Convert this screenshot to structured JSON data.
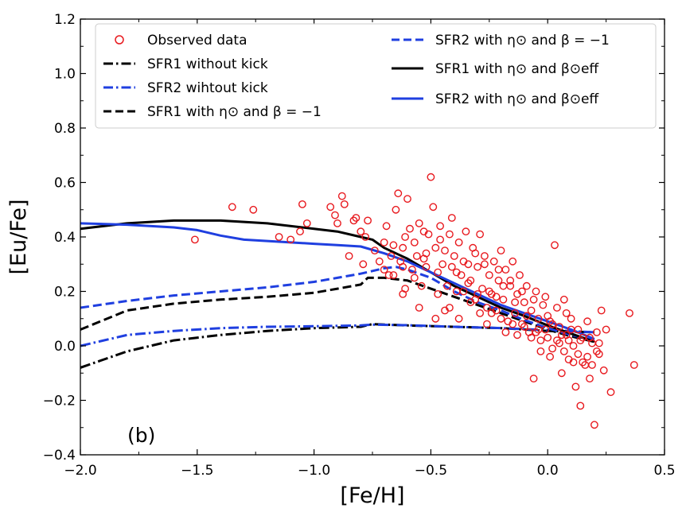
{
  "chart_data": {
    "type": "line",
    "panel_label": "(b)",
    "xlabel": "[Fe/H]",
    "ylabel": "[Eu/Fe]",
    "xlim": [
      -2.0,
      0.5
    ],
    "ylim": [
      -0.4,
      1.2
    ],
    "xticks": [
      -2.0,
      -1.5,
      -1.0,
      -0.5,
      0.0,
      0.5
    ],
    "xtick_labels": [
      "−2.0",
      "−1.5",
      "−1.0",
      "−0.5",
      "0.0",
      "0.5"
    ],
    "yticks": [
      -0.4,
      -0.2,
      0.0,
      0.2,
      0.4,
      0.6,
      0.8,
      1.0,
      1.2
    ],
    "ytick_labels": [
      "−0.4",
      "−0.2",
      "0.0",
      "0.2",
      "0.4",
      "0.6",
      "0.8",
      "1.0",
      "1.2"
    ],
    "grid": false,
    "legend_placement": "top",
    "legend": {
      "observed": "Observed data",
      "sfr1_nokick": "SFR1 without kick",
      "sfr2_nokick": "SFR2 wihtout kick",
      "sfr1_beta_m1": "SFR1 with η⊙ and β = −1",
      "sfr2_beta_m1": "SFR2 with η⊙ and β = −1",
      "sfr1_beta_eff": "SFR1 with η⊙ and β⊙eff",
      "sfr2_beta_eff": "SFR2 with η⊙ and β⊙eff"
    },
    "series": [
      {
        "key": "sfr1_nokick",
        "color": "#000000",
        "style": "dashdot",
        "points": [
          [
            -2.0,
            -0.08
          ],
          [
            -1.8,
            -0.02
          ],
          [
            -1.6,
            0.02
          ],
          [
            -1.4,
            0.04
          ],
          [
            -1.2,
            0.055
          ],
          [
            -1.0,
            0.065
          ],
          [
            -0.8,
            0.07
          ],
          [
            -0.75,
            0.08
          ],
          [
            -0.6,
            0.075
          ],
          [
            -0.4,
            0.07
          ],
          [
            -0.2,
            0.065
          ],
          [
            0.0,
            0.055
          ],
          [
            0.2,
            0.05
          ]
        ]
      },
      {
        "key": "sfr2_nokick",
        "color": "#1f3fe0",
        "style": "dashdot",
        "points": [
          [
            -2.0,
            0.0
          ],
          [
            -1.8,
            0.04
          ],
          [
            -1.6,
            0.055
          ],
          [
            -1.4,
            0.065
          ],
          [
            -1.2,
            0.07
          ],
          [
            -1.0,
            0.072
          ],
          [
            -0.8,
            0.075
          ],
          [
            -0.75,
            0.078
          ],
          [
            -0.6,
            0.076
          ],
          [
            -0.4,
            0.07
          ],
          [
            -0.2,
            0.065
          ],
          [
            0.0,
            0.058
          ],
          [
            0.2,
            0.05
          ]
        ]
      },
      {
        "key": "sfr1_beta_m1",
        "color": "#000000",
        "style": "dashed",
        "points": [
          [
            -2.0,
            0.06
          ],
          [
            -1.8,
            0.13
          ],
          [
            -1.6,
            0.155
          ],
          [
            -1.4,
            0.17
          ],
          [
            -1.2,
            0.18
          ],
          [
            -1.0,
            0.195
          ],
          [
            -0.9,
            0.21
          ],
          [
            -0.8,
            0.225
          ],
          [
            -0.77,
            0.25
          ],
          [
            -0.7,
            0.25
          ],
          [
            -0.6,
            0.24
          ],
          [
            -0.5,
            0.21
          ],
          [
            -0.4,
            0.18
          ],
          [
            -0.3,
            0.15
          ],
          [
            -0.2,
            0.12
          ],
          [
            -0.1,
            0.09
          ],
          [
            0.0,
            0.06
          ],
          [
            0.1,
            0.035
          ],
          [
            0.2,
            0.015
          ]
        ]
      },
      {
        "key": "sfr2_beta_m1",
        "color": "#1f3fe0",
        "style": "dashed",
        "points": [
          [
            -2.0,
            0.14
          ],
          [
            -1.8,
            0.165
          ],
          [
            -1.6,
            0.185
          ],
          [
            -1.4,
            0.2
          ],
          [
            -1.2,
            0.215
          ],
          [
            -1.0,
            0.235
          ],
          [
            -0.9,
            0.25
          ],
          [
            -0.8,
            0.265
          ],
          [
            -0.7,
            0.285
          ],
          [
            -0.65,
            0.29
          ],
          [
            -0.6,
            0.28
          ],
          [
            -0.5,
            0.25
          ],
          [
            -0.4,
            0.2
          ],
          [
            -0.3,
            0.16
          ],
          [
            -0.2,
            0.13
          ],
          [
            -0.1,
            0.095
          ],
          [
            0.0,
            0.065
          ],
          [
            0.1,
            0.04
          ],
          [
            0.2,
            0.02
          ]
        ]
      },
      {
        "key": "sfr1_beta_eff",
        "color": "#000000",
        "style": "solid",
        "points": [
          [
            -2.0,
            0.43
          ],
          [
            -1.8,
            0.45
          ],
          [
            -1.6,
            0.46
          ],
          [
            -1.4,
            0.46
          ],
          [
            -1.2,
            0.45
          ],
          [
            -1.0,
            0.43
          ],
          [
            -0.9,
            0.42
          ],
          [
            -0.8,
            0.4
          ],
          [
            -0.75,
            0.39
          ],
          [
            -0.7,
            0.36
          ],
          [
            -0.6,
            0.32
          ],
          [
            -0.5,
            0.27
          ],
          [
            -0.4,
            0.22
          ],
          [
            -0.3,
            0.18
          ],
          [
            -0.2,
            0.14
          ],
          [
            -0.1,
            0.11
          ],
          [
            0.0,
            0.075
          ],
          [
            0.1,
            0.045
          ],
          [
            0.2,
            0.015
          ]
        ]
      },
      {
        "key": "sfr2_beta_eff",
        "color": "#1f3fe0",
        "style": "solid",
        "points": [
          [
            -2.0,
            0.45
          ],
          [
            -1.8,
            0.445
          ],
          [
            -1.6,
            0.435
          ],
          [
            -1.5,
            0.425
          ],
          [
            -1.4,
            0.405
          ],
          [
            -1.3,
            0.39
          ],
          [
            -1.2,
            0.385
          ],
          [
            -1.0,
            0.375
          ],
          [
            -0.9,
            0.37
          ],
          [
            -0.8,
            0.365
          ],
          [
            -0.7,
            0.34
          ],
          [
            -0.6,
            0.31
          ],
          [
            -0.5,
            0.27
          ],
          [
            -0.4,
            0.23
          ],
          [
            -0.3,
            0.19
          ],
          [
            -0.2,
            0.15
          ],
          [
            -0.1,
            0.12
          ],
          [
            0.0,
            0.09
          ],
          [
            0.1,
            0.06
          ],
          [
            0.2,
            0.025
          ]
        ]
      }
    ],
    "scatter": {
      "key": "observed",
      "color": "#e8191e",
      "points": [
        [
          -1.51,
          0.39
        ],
        [
          -1.35,
          0.51
        ],
        [
          -1.26,
          0.5
        ],
        [
          -1.15,
          0.4
        ],
        [
          -1.1,
          0.39
        ],
        [
          -1.06,
          0.42
        ],
        [
          -1.05,
          0.52
        ],
        [
          -1.03,
          0.45
        ],
        [
          -0.93,
          0.51
        ],
        [
          -0.91,
          0.48
        ],
        [
          -0.9,
          0.45
        ],
        [
          -0.88,
          0.55
        ],
        [
          -0.87,
          0.52
        ],
        [
          -0.85,
          0.33
        ],
        [
          -0.83,
          0.46
        ],
        [
          -0.82,
          0.47
        ],
        [
          -0.8,
          0.42
        ],
        [
          -0.79,
          0.3
        ],
        [
          -0.78,
          0.4
        ],
        [
          -0.77,
          0.46
        ],
        [
          -0.74,
          0.35
        ],
        [
          -0.72,
          0.31
        ],
        [
          -0.7,
          0.38
        ],
        [
          -0.69,
          0.44
        ],
        [
          -0.68,
          0.26
        ],
        [
          -0.67,
          0.33
        ],
        [
          -0.66,
          0.37
        ],
        [
          -0.65,
          0.5
        ],
        [
          -0.64,
          0.56
        ],
        [
          -0.63,
          0.31
        ],
        [
          -0.62,
          0.36
        ],
        [
          -0.61,
          0.4
        ],
        [
          -0.6,
          0.54
        ],
        [
          -0.59,
          0.43
        ],
        [
          -0.58,
          0.28
        ],
        [
          -0.57,
          0.38
        ],
        [
          -0.56,
          0.33
        ],
        [
          -0.55,
          0.45
        ],
        [
          -0.54,
          0.22
        ],
        [
          -0.53,
          0.32
        ],
        [
          -0.52,
          0.34
        ],
        [
          -0.51,
          0.41
        ],
        [
          -0.5,
          0.62
        ],
        [
          -0.49,
          0.51
        ],
        [
          -0.48,
          0.36
        ],
        [
          -0.47,
          0.27
        ],
        [
          -0.46,
          0.44
        ],
        [
          -0.45,
          0.3
        ],
        [
          -0.44,
          0.35
        ],
        [
          -0.43,
          0.22
        ],
        [
          -0.42,
          0.41
        ],
        [
          -0.41,
          0.47
        ],
        [
          -0.4,
          0.33
        ],
        [
          -0.39,
          0.27
        ],
        [
          -0.38,
          0.38
        ],
        [
          -0.37,
          0.26
        ],
        [
          -0.36,
          0.2
        ],
        [
          -0.35,
          0.42
        ],
        [
          -0.34,
          0.3
        ],
        [
          -0.33,
          0.24
        ],
        [
          -0.32,
          0.36
        ],
        [
          -0.31,
          0.17
        ],
        [
          -0.3,
          0.29
        ],
        [
          -0.29,
          0.41
        ],
        [
          -0.28,
          0.21
        ],
        [
          -0.27,
          0.33
        ],
        [
          -0.26,
          0.14
        ],
        [
          -0.25,
          0.26
        ],
        [
          -0.24,
          0.19
        ],
        [
          -0.23,
          0.31
        ],
        [
          -0.22,
          0.13
        ],
        [
          -0.21,
          0.24
        ],
        [
          -0.2,
          0.35
        ],
        [
          -0.19,
          0.17
        ],
        [
          -0.18,
          0.28
        ],
        [
          -0.17,
          0.09
        ],
        [
          -0.16,
          0.22
        ],
        [
          -0.15,
          0.31
        ],
        [
          -0.14,
          0.12
        ],
        [
          -0.13,
          0.19
        ],
        [
          -0.12,
          0.26
        ],
        [
          -0.11,
          0.08
        ],
        [
          -0.1,
          0.16
        ],
        [
          -0.09,
          0.22
        ],
        [
          -0.08,
          0.05
        ],
        [
          -0.07,
          0.13
        ],
        [
          -0.06,
          -0.12
        ],
        [
          -0.05,
          0.2
        ],
        [
          -0.04,
          0.1
        ],
        [
          -0.03,
          0.02
        ],
        [
          -0.02,
          0.15
        ],
        [
          -0.01,
          0.06
        ],
        [
          0.0,
          0.11
        ],
        [
          0.01,
          -0.04
        ],
        [
          0.02,
          0.08
        ],
        [
          0.03,
          0.37
        ],
        [
          0.04,
          0.02
        ],
        [
          0.05,
          0.07
        ],
        [
          0.06,
          -0.1
        ],
        [
          0.07,
          0.17
        ],
        [
          0.08,
          0.04
        ],
        [
          0.09,
          -0.05
        ],
        [
          0.1,
          0.1
        ],
        [
          0.11,
          0.0
        ],
        [
          0.12,
          -0.15
        ],
        [
          0.13,
          0.06
        ],
        [
          0.14,
          -0.22
        ],
        [
          0.15,
          0.03
        ],
        [
          0.16,
          -0.07
        ],
        [
          0.17,
          0.09
        ],
        [
          0.18,
          -0.12
        ],
        [
          0.19,
          0.01
        ],
        [
          0.2,
          -0.29
        ],
        [
          0.21,
          0.05
        ],
        [
          0.22,
          -0.03
        ],
        [
          0.23,
          0.13
        ],
        [
          0.24,
          -0.09
        ],
        [
          0.25,
          0.06
        ],
        [
          0.27,
          -0.17
        ],
        [
          0.35,
          0.12
        ],
        [
          0.37,
          -0.07
        ],
        [
          -0.62,
          0.19
        ],
        [
          -0.55,
          0.14
        ],
        [
          -0.48,
          0.1
        ],
        [
          -0.42,
          0.14
        ],
        [
          -0.38,
          0.1
        ],
        [
          -0.33,
          0.16
        ],
        [
          -0.29,
          0.12
        ],
        [
          -0.26,
          0.08
        ],
        [
          -0.24,
          0.12
        ],
        [
          -0.2,
          0.1
        ],
        [
          -0.18,
          0.05
        ],
        [
          -0.15,
          0.08
        ],
        [
          -0.13,
          0.04
        ],
        [
          -0.1,
          0.07
        ],
        [
          -0.07,
          0.03
        ],
        [
          -0.05,
          0.05
        ],
        [
          -0.03,
          -0.02
        ],
        [
          0.0,
          0.03
        ],
        [
          0.02,
          -0.01
        ],
        [
          0.05,
          0.01
        ],
        [
          0.07,
          -0.02
        ],
        [
          0.09,
          0.02
        ],
        [
          0.11,
          -0.06
        ],
        [
          0.13,
          -0.03
        ],
        [
          0.15,
          -0.06
        ],
        [
          0.17,
          -0.04
        ],
        [
          0.19,
          -0.07
        ],
        [
          0.21,
          -0.02
        ],
        [
          0.08,
          0.12
        ],
        [
          0.04,
          0.14
        ],
        [
          -0.01,
          0.18
        ],
        [
          -0.06,
          0.17
        ],
        [
          -0.11,
          0.2
        ],
        [
          -0.16,
          0.24
        ],
        [
          -0.21,
          0.28
        ],
        [
          -0.27,
          0.3
        ],
        [
          -0.31,
          0.34
        ],
        [
          -0.36,
          0.31
        ],
        [
          -0.41,
          0.29
        ],
        [
          -0.46,
          0.39
        ],
        [
          -0.52,
          0.29
        ],
        [
          -0.57,
          0.25
        ],
        [
          -0.61,
          0.21
        ],
        [
          -0.66,
          0.26
        ],
        [
          -0.7,
          0.28
        ],
        [
          -0.62,
          0.29
        ],
        [
          -0.53,
          0.42
        ],
        [
          -0.47,
          0.19
        ],
        [
          -0.44,
          0.13
        ],
        [
          -0.39,
          0.2
        ],
        [
          -0.34,
          0.23
        ],
        [
          -0.3,
          0.19
        ],
        [
          -0.25,
          0.2
        ],
        [
          -0.22,
          0.18
        ],
        [
          -0.19,
          0.22
        ],
        [
          -0.14,
          0.16
        ],
        [
          -0.09,
          0.11
        ],
        [
          -0.04,
          0.06
        ],
        [
          0.01,
          0.09
        ],
        [
          0.06,
          0.04
        ],
        [
          0.1,
          0.06
        ],
        [
          0.14,
          0.02
        ],
        [
          0.18,
          0.03
        ],
        [
          0.22,
          0.01
        ]
      ]
    }
  }
}
